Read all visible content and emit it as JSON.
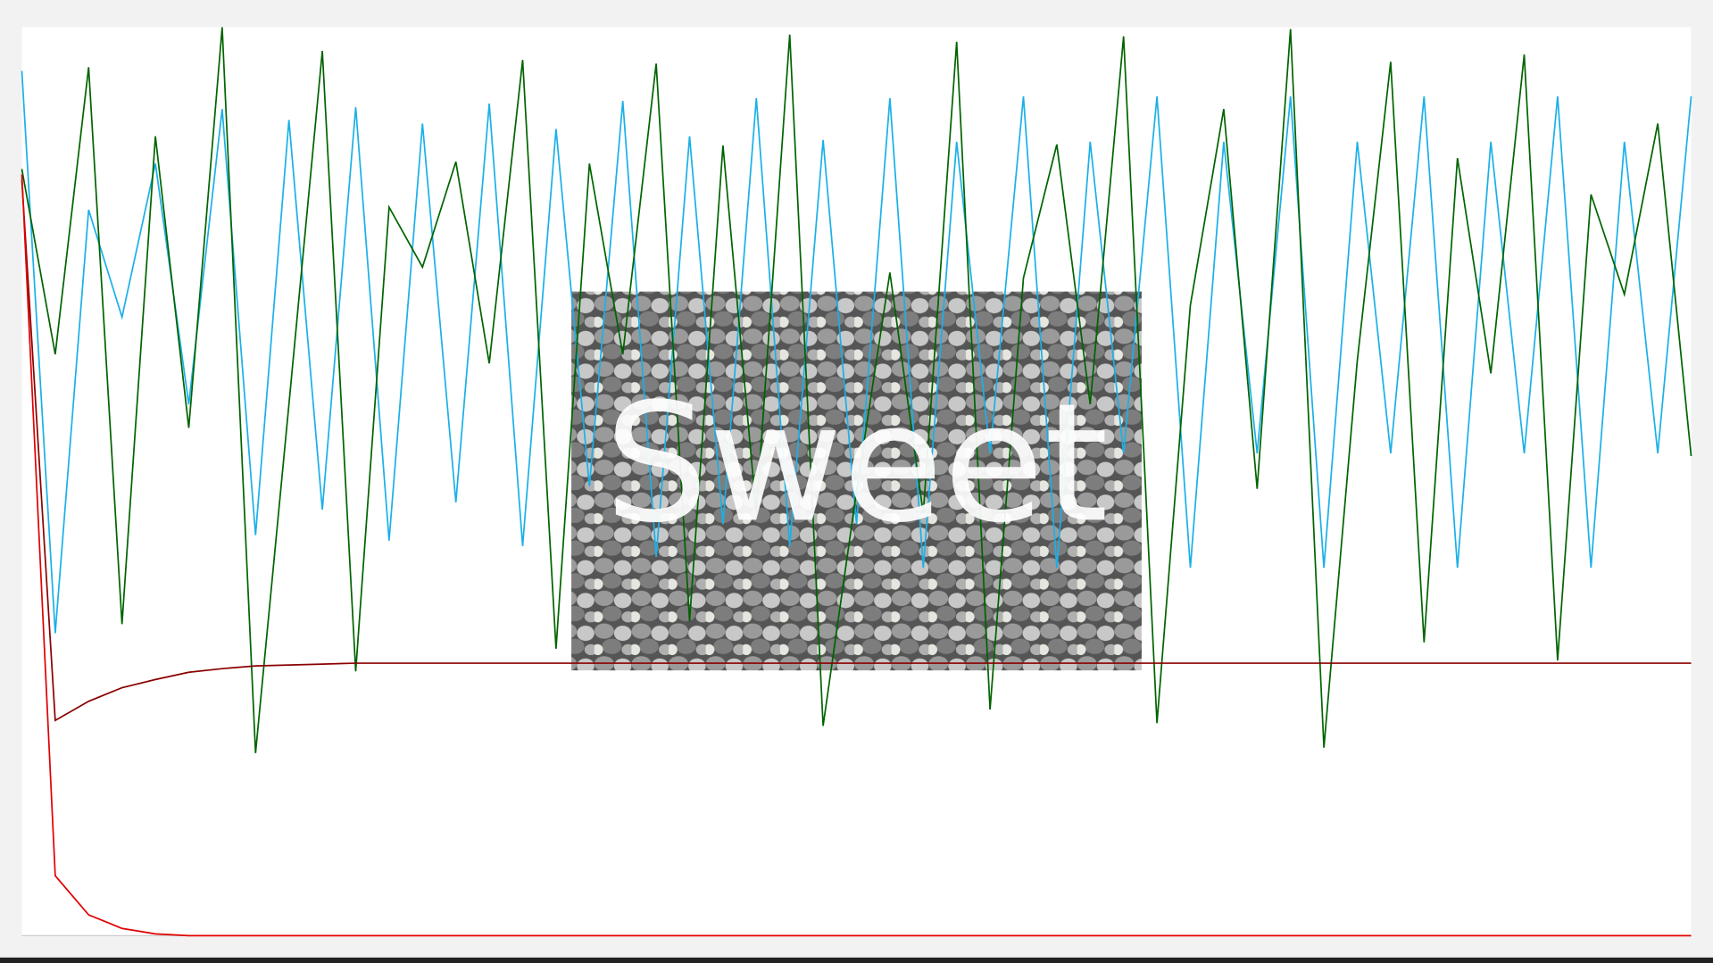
{
  "chart_data": {
    "type": "line",
    "annotation": "Sweet",
    "x": [
      0,
      1,
      2,
      3,
      4,
      5,
      6,
      7,
      8,
      9,
      10,
      11,
      12,
      13,
      14,
      15,
      16,
      17,
      18,
      19,
      20,
      21,
      22,
      23,
      24,
      25,
      26,
      27,
      28,
      29,
      30,
      31,
      32,
      33,
      34,
      35,
      36,
      37,
      38,
      39,
      40,
      41,
      42,
      43,
      44,
      45,
      46,
      47,
      48,
      49,
      50
    ],
    "xlim": [
      0,
      50
    ],
    "ylim": [
      0,
      100
    ],
    "series": [
      {
        "color": "#1ab0e8",
        "values": [
          95.2,
          33.3,
          79.9,
          68.1,
          85.0,
          58.5,
          91.0,
          44.1,
          89.8,
          46.9,
          91.2,
          43.5,
          89.4,
          47.7,
          91.6,
          42.9,
          88.8,
          49.5,
          91.9,
          41.7,
          88.0,
          45.3,
          92.2,
          42.9,
          87.6,
          45.3,
          92.2,
          40.5,
          87.4,
          53.1,
          92.4,
          40.5,
          87.4,
          53.1,
          92.4,
          40.5,
          87.4,
          53.1,
          92.4,
          40.5,
          87.4,
          53.1,
          92.4,
          40.5,
          87.4,
          53.1,
          92.4,
          40.5,
          87.4,
          53.1,
          92.4
        ]
      },
      {
        "color": "#006400",
        "values": [
          84.4,
          64.0,
          95.6,
          34.3,
          88.0,
          55.9,
          100,
          20.1,
          58.5,
          97.4,
          29.1,
          80.2,
          73.6,
          85.2,
          63.0,
          96.4,
          31.6,
          85.0,
          64.0,
          96.0,
          34.6,
          87.0,
          46.5,
          99.2,
          23.1,
          48.9,
          73.0,
          46.5,
          98.4,
          24.9,
          72.4,
          87.1,
          58.5,
          99.0,
          23.4,
          69.4,
          91.0,
          49.2,
          99.8,
          20.7,
          63.3,
          96.2,
          32.3,
          85.6,
          61.9,
          97.0,
          30.3,
          81.6,
          70.6,
          89.4,
          52.8
        ]
      },
      {
        "color": "#8b0000",
        "values": [
          83.2,
          23.7,
          25.8,
          27.3,
          28.2,
          29.0,
          29.4,
          29.7,
          29.8,
          29.9,
          30,
          30,
          30,
          30,
          30,
          30,
          30,
          30,
          30,
          30,
          30,
          30,
          30,
          30,
          30,
          30,
          30,
          30,
          30,
          30,
          30,
          30,
          30,
          30,
          30,
          30,
          30,
          30,
          30,
          30,
          30,
          30,
          30,
          30,
          30,
          30,
          30,
          30,
          30,
          30,
          30
        ]
      },
      {
        "color": "#e00000",
        "values": [
          83.8,
          6.6,
          2.3,
          0.8,
          0.2,
          0,
          0,
          0,
          0,
          0,
          0,
          0,
          0,
          0,
          0,
          0,
          0,
          0,
          0,
          0,
          0,
          0,
          0,
          0,
          0,
          0,
          0,
          0,
          0,
          0,
          0,
          0,
          0,
          0,
          0,
          0,
          0,
          0,
          0,
          0,
          0,
          0,
          0,
          0,
          0,
          0,
          0,
          0,
          0,
          0,
          0
        ]
      }
    ]
  }
}
